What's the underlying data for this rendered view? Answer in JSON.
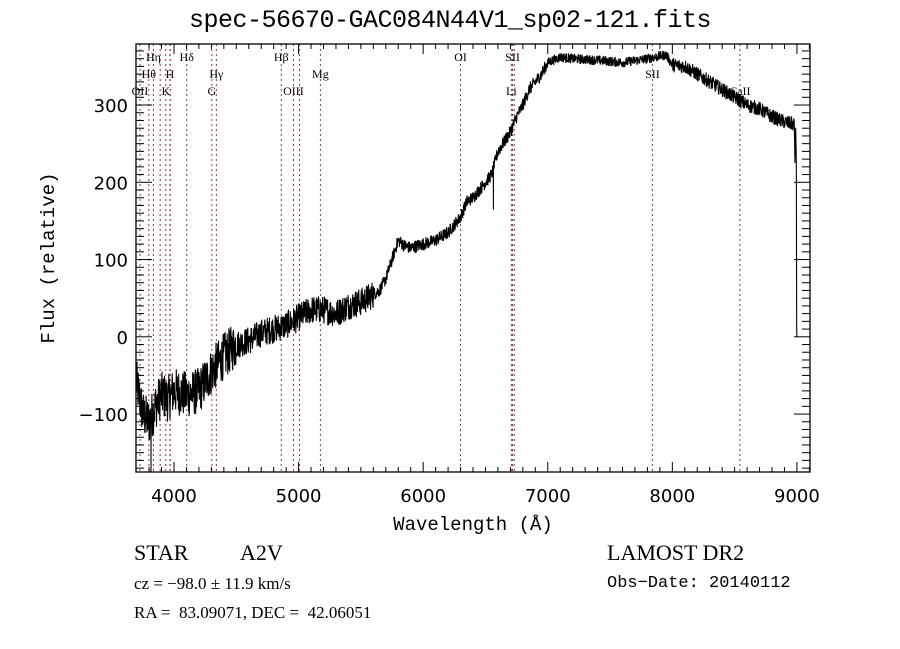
{
  "chart_data": {
    "type": "line",
    "title": "spec-56670-GAC084N44V1_sp02-121.fits",
    "xlabel": "Wavelength (Å)",
    "ylabel": "Flux (relative)",
    "xlim": [
      3695,
      9105
    ],
    "ylim": [
      -175,
      379
    ],
    "xticks": [
      4000,
      5000,
      6000,
      7000,
      8000,
      9000
    ],
    "yticks": [
      -100,
      0,
      100,
      200,
      300
    ],
    "xtick_labels": [
      "4000",
      "5000",
      "6000",
      "7000",
      "8000",
      "9000"
    ],
    "ytick_labels": [
      "−100",
      "0",
      "100",
      "200",
      "300"
    ],
    "grid": false,
    "series": [
      {
        "name": "spectrum",
        "color": "#000000",
        "anchors": {
          "x": [
            3700,
            3750,
            3800,
            3850,
            3900,
            3950,
            4000,
            4100,
            4200,
            4300,
            4400,
            4500,
            4600,
            4700,
            4800,
            4900,
            5000,
            5100,
            5200,
            5300,
            5400,
            5500,
            5550,
            5600,
            5650,
            5700,
            5750,
            5800,
            5850,
            5900,
            6000,
            6100,
            6200,
            6300,
            6350,
            6400,
            6500,
            6550,
            6600,
            6700,
            6750,
            6800,
            6850,
            6900,
            6950,
            7000,
            7100,
            7200,
            7400,
            7600,
            7800,
            7950,
            8000,
            8100,
            8200,
            8300,
            8400,
            8500,
            8600,
            8700,
            8800,
            8900,
            8980,
            9000
          ],
          "y": [
            -60,
            -100,
            -110,
            -90,
            -75,
            -80,
            -70,
            -75,
            -70,
            -45,
            -25,
            -10,
            -5,
            5,
            10,
            15,
            25,
            35,
            35,
            30,
            40,
            45,
            50,
            55,
            60,
            75,
            100,
            125,
            118,
            115,
            120,
            125,
            135,
            155,
            175,
            180,
            200,
            210,
            240,
            265,
            285,
            300,
            320,
            330,
            340,
            355,
            362,
            360,
            358,
            355,
            360,
            365,
            352,
            350,
            340,
            330,
            320,
            310,
            300,
            295,
            285,
            278,
            275,
            0
          ]
        },
        "noise_amplitude": [
          {
            "from": 3695,
            "to": 4500,
            "amp": 30
          },
          {
            "from": 4500,
            "to": 5600,
            "amp": 18
          },
          {
            "from": 5600,
            "to": 7000,
            "amp": 8
          },
          {
            "from": 7000,
            "to": 8000,
            "amp": 6
          },
          {
            "from": 8000,
            "to": 8980,
            "amp": 9
          }
        ],
        "features": [
          {
            "x": 3815,
            "y": -175,
            "label": "deep-absorption"
          },
          {
            "x": 6563,
            "y": 165,
            "label": "H-alpha-spike"
          }
        ]
      }
    ],
    "line_markers": [
      {
        "label": "Hη",
        "x": 3835,
        "row": 0
      },
      {
        "label": "Hθ",
        "x": 3798,
        "row": 1
      },
      {
        "label": "OII",
        "x": 3727,
        "row": 2
      },
      {
        "label": "H",
        "x": 3968,
        "row": 1
      },
      {
        "label": "K",
        "x": 3934,
        "row": 2
      },
      {
        "label": "Hδ",
        "x": 4102,
        "row": 0
      },
      {
        "label": "Hγ",
        "x": 4340,
        "row": 1
      },
      {
        "label": "G",
        "x": 4304,
        "row": 2
      },
      {
        "label": "Hβ",
        "x": 4861,
        "row": 0
      },
      {
        "label": "OIII",
        "x": 4959,
        "row": 2
      },
      {
        "label": "Mg",
        "x": 5175,
        "row": 1
      },
      {
        "label": "OI",
        "x": 6300,
        "row": 0
      },
      {
        "label": "SII",
        "x": 6717,
        "row": 0
      },
      {
        "label": "Li",
        "x": 6708,
        "row": 2
      },
      {
        "label": "SII",
        "x": 7840,
        "row": 1
      },
      {
        "label": "CaII",
        "x": 8542,
        "row": 2
      }
    ],
    "marker_extra_lines_x": [
      3889,
      3970,
      4959,
      5007,
      6731
    ],
    "marker_color": "#8b3a3a"
  },
  "info": {
    "object_class": "STAR",
    "subclass": "A2V",
    "survey": "LAMOST DR2",
    "redshift_line": "cz = −98.0 ± 11.9 km/s",
    "obs_date_line": "Obs−Date: 20140112",
    "coords_line": "RA =  83.09071, DEC =  42.06051"
  }
}
